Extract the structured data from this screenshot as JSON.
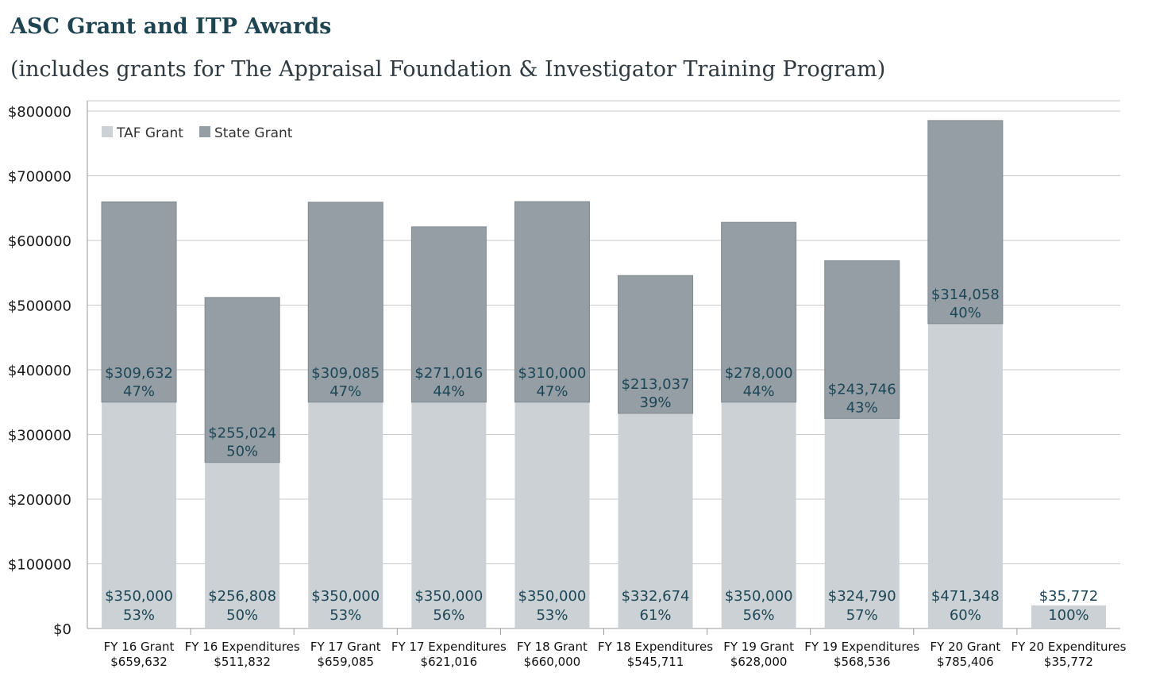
{
  "chart_data": {
    "type": "bar",
    "stacked": true,
    "title": "ASC Grant and ITP Awards",
    "subtitle": "(includes grants for The Appraisal Foundation & Investigator Training Program)",
    "xlabel": "",
    "ylabel": "",
    "ylim": [
      0,
      800000
    ],
    "yticks": [
      0,
      100000,
      200000,
      300000,
      400000,
      500000,
      600000,
      700000,
      800000
    ],
    "ytick_labels": [
      "$0",
      "$100000",
      "$200000",
      "$300000",
      "$400000",
      "$500000",
      "$600000",
      "$700000",
      "$800000"
    ],
    "grid": true,
    "legend_position": "top-left",
    "categories": [
      "FY 16 Grant",
      "FY 16 Expenditures",
      "FY 17 Grant",
      "FY 17 Expenditures",
      "FY 18 Grant",
      "FY 18 Expenditures",
      "FY 19 Grant",
      "FY 19 Expenditures",
      "FY 20 Grant",
      "FY 20 Expenditures"
    ],
    "totals": [
      "$659,632",
      "$511,832",
      "$659,085",
      "$621,016",
      "$660,000",
      "$545,711",
      "$628,000",
      "$568,536",
      "$785,406",
      "$35,772"
    ],
    "series": [
      {
        "name": "TAF Grant",
        "color": "#cbd1d4",
        "values": [
          350000,
          256808,
          350000,
          350000,
          350000,
          332674,
          350000,
          324790,
          471348,
          35772
        ],
        "value_labels": [
          "$350,000",
          "$256,808",
          "$350,000",
          "$350,000",
          "$350,000",
          "$332,674",
          "$350,000",
          "$324,790",
          "$471,348",
          "$35,772"
        ],
        "pct_labels": [
          "53%",
          "50%",
          "53%",
          "56%",
          "53%",
          "61%",
          "56%",
          "57%",
          "60%",
          "100%"
        ]
      },
      {
        "name": "State Grant",
        "color": "#949ea4",
        "values": [
          309632,
          255024,
          309085,
          271016,
          310000,
          213037,
          278000,
          243746,
          314058,
          0
        ],
        "value_labels": [
          "$309,632",
          "$255,024",
          "$309,085",
          "$271,016",
          "$310,000",
          "$213,037",
          "$278,000",
          "$243,746",
          "$314,058",
          ""
        ],
        "pct_labels": [
          "47%",
          "50%",
          "47%",
          "44%",
          "47%",
          "39%",
          "44%",
          "43%",
          "40%",
          ""
        ]
      }
    ]
  }
}
